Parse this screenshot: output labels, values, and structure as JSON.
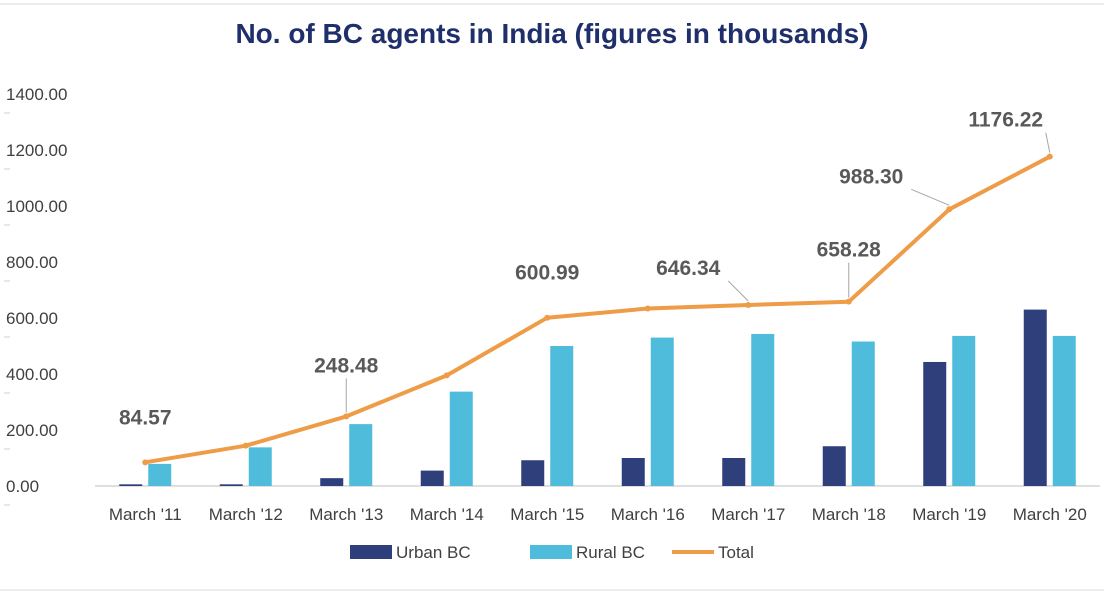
{
  "chart_data": {
    "type": "bar",
    "title": "No. of BC agents in India (figures in thousands)",
    "categories": [
      "March '11",
      "March '12",
      "March '13",
      "March '14",
      "March '15",
      "March '16",
      "March '17",
      "March '18",
      "March '19",
      "March '20"
    ],
    "series": [
      {
        "name": "Urban BC",
        "type": "bar",
        "color": "#2e3f7c",
        "values": [
          6,
          6,
          28,
          55,
          92,
          100,
          100,
          142,
          443,
          630
        ]
      },
      {
        "name": "Rural BC",
        "type": "bar",
        "color": "#4fbcdc",
        "values": [
          79,
          138,
          221,
          337,
          500,
          530,
          543,
          516,
          536,
          536
        ]
      },
      {
        "name": "Total",
        "type": "line",
        "color": "#ee9c47",
        "values": [
          84.57,
          144,
          248.48,
          395,
          600.99,
          634,
          646.34,
          658.28,
          988.3,
          1176.22
        ]
      }
    ],
    "data_labels": [
      {
        "index": 0,
        "text": "84.57"
      },
      {
        "index": 2,
        "text": "248.48"
      },
      {
        "index": 4,
        "text": "600.99"
      },
      {
        "index": 6,
        "text": "646.34"
      },
      {
        "index": 7,
        "text": "658.28"
      },
      {
        "index": 8,
        "text": "988.30"
      },
      {
        "index": 9,
        "text": "1176.22"
      }
    ],
    "ylim": [
      0,
      1400
    ],
    "yticks": [
      "0.00",
      "200.00",
      "400.00",
      "600.00",
      "800.00",
      "1000.00",
      "1200.00",
      "1400.00"
    ],
    "grid": false,
    "legend": "bottom"
  }
}
